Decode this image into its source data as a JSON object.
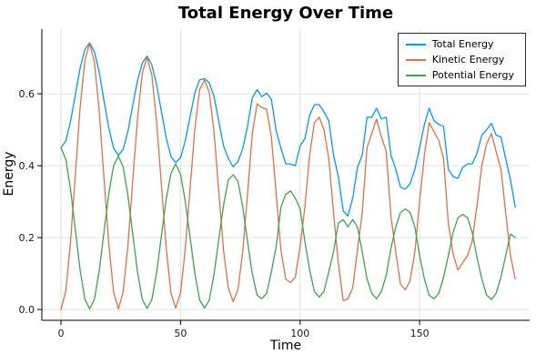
{
  "chart_data": {
    "type": "line",
    "title": "Total Energy Over Time",
    "xlabel": "Time",
    "ylabel": "Energy",
    "xlim": [
      -8,
      196
    ],
    "ylim": [
      -0.03,
      0.78
    ],
    "x_ticks": [
      0,
      50,
      100,
      150
    ],
    "y_ticks": [
      0.0,
      0.2,
      0.4,
      0.6
    ],
    "grid": true,
    "grid_color": "#e2e2e2",
    "axis_color": "#000000",
    "legend_position": "top-right",
    "x": [
      0,
      2,
      4,
      6,
      8,
      10,
      12,
      14,
      16,
      18,
      20,
      22,
      24,
      26,
      28,
      30,
      32,
      34,
      36,
      38,
      40,
      42,
      44,
      46,
      48,
      50,
      52,
      54,
      56,
      58,
      60,
      62,
      64,
      66,
      68,
      70,
      72,
      74,
      76,
      78,
      80,
      82,
      84,
      86,
      88,
      90,
      92,
      94,
      96,
      98,
      100,
      102,
      104,
      106,
      108,
      110,
      112,
      114,
      116,
      118,
      120,
      122,
      124,
      126,
      128,
      130,
      132,
      134,
      136,
      138,
      140,
      142,
      144,
      146,
      148,
      150,
      152,
      154,
      156,
      158,
      160,
      162,
      164,
      166,
      168,
      170,
      172,
      174,
      176,
      178,
      180,
      182,
      184,
      186,
      188,
      190
    ],
    "series": [
      {
        "name": "Total Energy",
        "color": "#009af9",
        "values": [
          0.45,
          0.469,
          0.523,
          0.597,
          0.671,
          0.723,
          0.742,
          0.717,
          0.659,
          0.581,
          0.505,
          0.449,
          0.429,
          0.445,
          0.496,
          0.567,
          0.636,
          0.686,
          0.705,
          0.68,
          0.625,
          0.551,
          0.478,
          0.425,
          0.409,
          0.422,
          0.47,
          0.537,
          0.603,
          0.639,
          0.642,
          0.631,
          0.593,
          0.524,
          0.455,
          0.42,
          0.397,
          0.412,
          0.447,
          0.51,
          0.588,
          0.612,
          0.592,
          0.602,
          0.585,
          0.497,
          0.45,
          0.405,
          0.405,
          0.4,
          0.455,
          0.475,
          0.54,
          0.57,
          0.57,
          0.55,
          0.525,
          0.43,
          0.37,
          0.275,
          0.26,
          0.31,
          0.395,
          0.43,
          0.535,
          0.535,
          0.56,
          0.53,
          0.535,
          0.43,
          0.39,
          0.34,
          0.335,
          0.35,
          0.39,
          0.45,
          0.515,
          0.56,
          0.525,
          0.515,
          0.51,
          0.39,
          0.37,
          0.365,
          0.395,
          0.405,
          0.405,
          0.435,
          0.485,
          0.5,
          0.518,
          0.485,
          0.48,
          0.42,
          0.36,
          0.285
        ]
      },
      {
        "name": "Kinetic Energy",
        "color": "#e26f46",
        "values": [
          0.0,
          0.051,
          0.188,
          0.375,
          0.56,
          0.694,
          0.74,
          0.688,
          0.55,
          0.365,
          0.182,
          0.049,
          0.002,
          0.048,
          0.179,
          0.356,
          0.531,
          0.658,
          0.702,
          0.652,
          0.522,
          0.346,
          0.172,
          0.046,
          0.004,
          0.046,
          0.169,
          0.337,
          0.504,
          0.612,
          0.638,
          0.605,
          0.495,
          0.329,
          0.164,
          0.06,
          0.022,
          0.055,
          0.161,
          0.32,
          0.488,
          0.572,
          0.562,
          0.557,
          0.48,
          0.322,
          0.165,
          0.085,
          0.075,
          0.09,
          0.175,
          0.285,
          0.43,
          0.52,
          0.535,
          0.5,
          0.42,
          0.27,
          0.13,
          0.025,
          0.03,
          0.06,
          0.165,
          0.27,
          0.45,
          0.49,
          0.53,
          0.48,
          0.44,
          0.26,
          0.16,
          0.07,
          0.055,
          0.08,
          0.16,
          0.3,
          0.43,
          0.52,
          0.495,
          0.47,
          0.42,
          0.24,
          0.155,
          0.11,
          0.13,
          0.15,
          0.19,
          0.29,
          0.4,
          0.46,
          0.49,
          0.44,
          0.39,
          0.27,
          0.15,
          0.085
        ]
      },
      {
        "name": "Potential Energy",
        "color": "#3da44e",
        "values": [
          0.45,
          0.418,
          0.335,
          0.222,
          0.111,
          0.029,
          0.002,
          0.029,
          0.109,
          0.216,
          0.323,
          0.4,
          0.427,
          0.397,
          0.317,
          0.211,
          0.105,
          0.028,
          0.003,
          0.028,
          0.103,
          0.205,
          0.306,
          0.379,
          0.405,
          0.376,
          0.301,
          0.2,
          0.099,
          0.027,
          0.004,
          0.026,
          0.098,
          0.195,
          0.291,
          0.36,
          0.375,
          0.357,
          0.286,
          0.19,
          0.1,
          0.04,
          0.03,
          0.045,
          0.105,
          0.175,
          0.285,
          0.32,
          0.33,
          0.31,
          0.28,
          0.19,
          0.11,
          0.05,
          0.035,
          0.05,
          0.105,
          0.16,
          0.24,
          0.25,
          0.23,
          0.25,
          0.23,
          0.16,
          0.085,
          0.045,
          0.03,
          0.05,
          0.095,
          0.17,
          0.23,
          0.27,
          0.28,
          0.27,
          0.23,
          0.15,
          0.085,
          0.04,
          0.03,
          0.045,
          0.09,
          0.15,
          0.215,
          0.255,
          0.265,
          0.255,
          0.215,
          0.145,
          0.085,
          0.04,
          0.028,
          0.045,
          0.09,
          0.15,
          0.21,
          0.2
        ]
      }
    ]
  }
}
